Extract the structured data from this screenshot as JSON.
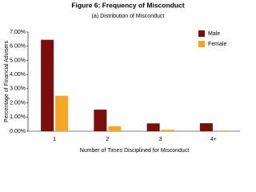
{
  "chart_data": {
    "type": "bar",
    "title": "Figure 6: Frequency of Misconduct",
    "subtitle": "(a) Distribution of Misconduct",
    "x_label": "Number of Times Disciplined for Misconduct",
    "y_label": "Percentage of Financial Advisers",
    "categories": [
      "1",
      "2",
      "3",
      "4+"
    ],
    "series": [
      {
        "name": "Male",
        "color": "#7b0d0d",
        "values": [
          6.45,
          1.52,
          0.55,
          0.56
        ]
      },
      {
        "name": "Female",
        "color": "#f5a623",
        "values": [
          2.5,
          0.35,
          0.1,
          0.05
        ]
      }
    ],
    "ylim": [
      0,
      7
    ],
    "yticks": [
      {
        "value": 0,
        "label": "0.00%"
      },
      {
        "value": 1,
        "label": "1.00%"
      },
      {
        "value": 2,
        "label": "2.00%"
      },
      {
        "value": 3,
        "label": "3.00%"
      },
      {
        "value": 4,
        "label": "4.00%"
      },
      {
        "value": 5,
        "label": "5.00%"
      },
      {
        "value": 6,
        "label": "6.00%"
      },
      {
        "value": 7,
        "label": "7.00%"
      }
    ],
    "grid": false,
    "legend": "upper right"
  }
}
